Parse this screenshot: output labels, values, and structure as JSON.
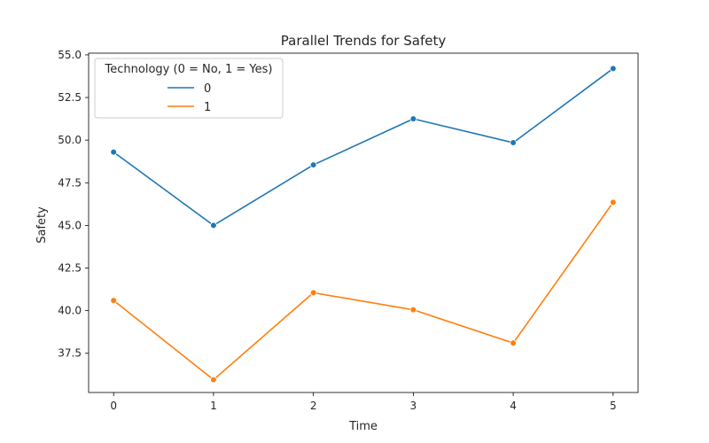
{
  "chart_data": {
    "type": "line",
    "title": "Parallel Trends for Safety",
    "xlabel": "Time",
    "ylabel": "Safety",
    "x": [
      0,
      1,
      2,
      3,
      4,
      5
    ],
    "xlim": [
      -0.25,
      5.25
    ],
    "ylim": [
      35.2,
      55.1
    ],
    "yticks": [
      "37.5",
      "40.0",
      "42.5",
      "45.0",
      "47.5",
      "50.0",
      "52.5",
      "55.0"
    ],
    "xticks": [
      "0",
      "1",
      "2",
      "3",
      "4",
      "5"
    ],
    "legend": {
      "title": "Technology (0 = No, 1 = Yes)",
      "placement": "top-left"
    },
    "series": [
      {
        "name": "0",
        "color": "#1f77b4",
        "values": [
          49.3,
          45.0,
          48.55,
          51.25,
          49.85,
          54.2
        ]
      },
      {
        "name": "1",
        "color": "#ff7f0e",
        "values": [
          40.6,
          35.95,
          41.05,
          40.05,
          38.1,
          46.35
        ]
      }
    ],
    "grid": false
  }
}
